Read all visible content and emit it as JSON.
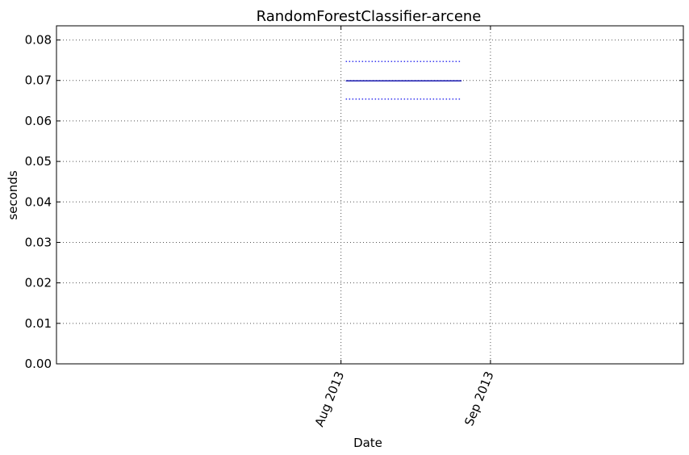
{
  "chart_data": {
    "type": "line",
    "title": "RandomForestClassifier-arcene",
    "xlabel": "Date",
    "ylabel": "seconds",
    "xlim": [
      "2013-06-03",
      "2013-10-11"
    ],
    "ylim": [
      0,
      0.0835
    ],
    "x_ticks": [
      {
        "date": "2013-08-01",
        "label": "Aug 2013"
      },
      {
        "date": "2013-09-01",
        "label": "Sep 2013"
      }
    ],
    "y_ticks": [
      {
        "value": 0.0,
        "label": "0.00"
      },
      {
        "value": 0.01,
        "label": "0.01"
      },
      {
        "value": 0.02,
        "label": "0.02"
      },
      {
        "value": 0.03,
        "label": "0.03"
      },
      {
        "value": 0.04,
        "label": "0.04"
      },
      {
        "value": 0.05,
        "label": "0.05"
      },
      {
        "value": 0.06,
        "label": "0.06"
      },
      {
        "value": 0.07,
        "label": "0.07"
      },
      {
        "value": 0.08,
        "label": "0.08"
      }
    ],
    "grid": true,
    "series": [
      {
        "role": "mean",
        "style": "solid",
        "color": "#0000aa",
        "x": [
          "2013-08-02",
          "2013-08-26"
        ],
        "y": [
          0.0699,
          0.0699
        ]
      },
      {
        "role": "upper",
        "style": "dotted",
        "color": "#2222ee",
        "x": [
          "2013-08-02",
          "2013-08-26"
        ],
        "y": [
          0.0747,
          0.0747
        ]
      },
      {
        "role": "lower",
        "style": "dotted",
        "color": "#2222ee",
        "x": [
          "2013-08-02",
          "2013-08-26"
        ],
        "y": [
          0.0654,
          0.0654
        ]
      }
    ]
  }
}
